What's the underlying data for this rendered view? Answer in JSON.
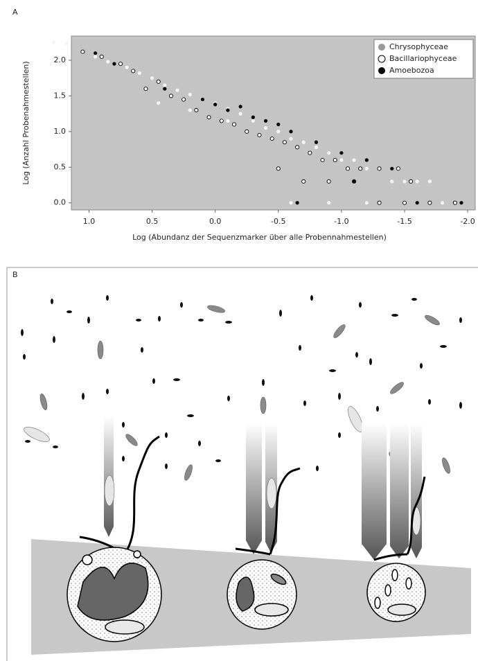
{
  "panel_labels": [
    "A",
    "B"
  ],
  "chart_data": {
    "type": "scatter",
    "xlabel": "Log (Abundanz der Sequenzmarker über alle Probennahmestellen)",
    "ylabel": "Log (Anzahl Probenahmestellen)",
    "xlim": [
      1.14,
      -2.06
    ],
    "ylim": [
      -0.1,
      2.34
    ],
    "xticks": [
      {
        "value": 1,
        "label": "1.0"
      },
      0.5,
      {
        "value": 0,
        "label": "0.0"
      },
      -0.5,
      {
        "value": -1,
        "label": "-1.0"
      },
      -1.5,
      {
        "value": -2,
        "label": "-2.0"
      }
    ],
    "yticks": [
      {
        "value": 0,
        "label": "0.0"
      },
      0.5,
      {
        "value": 1,
        "label": "1.0"
      },
      1.5,
      {
        "value": 2,
        "label": "2.0"
      }
    ],
    "legend": "upper right",
    "grid": false,
    "series": [
      {
        "name": "Chrysophyceae",
        "color": "#f4f4f4",
        "legend_color": "#999999",
        "x": [
          1.28,
          1.18,
          1.05,
          0.95,
          0.85,
          0.7,
          0.6,
          0.5,
          0.4,
          0.3,
          0.2,
          0.1,
          0.0,
          -0.1,
          -0.2,
          -0.3,
          -0.4,
          -0.5,
          -0.6,
          -0.7,
          -0.8,
          -0.9,
          -1.0,
          -1.1,
          -1.2,
          -1.3,
          -1.4,
          -1.5,
          -1.6,
          -1.7,
          -0.6,
          -0.9,
          -1.2,
          -1.5,
          -1.8,
          0.45,
          0.2,
          -0.1
        ],
        "values": [
          2.25,
          2.23,
          2.12,
          2.05,
          1.98,
          1.9,
          1.82,
          1.75,
          1.65,
          1.58,
          1.52,
          1.45,
          1.4,
          1.32,
          1.25,
          1.15,
          1.05,
          1.0,
          0.9,
          0.85,
          0.78,
          0.7,
          0.6,
          0.6,
          0.48,
          0.48,
          0.3,
          0.3,
          0.3,
          0.3,
          0,
          0,
          0,
          0,
          0,
          1.4,
          1.3,
          1.15
        ]
      },
      {
        "name": "Bacillariophyceae",
        "color": "#ffffff",
        "x": [
          1.05,
          0.9,
          0.75,
          0.65,
          0.55,
          0.45,
          0.35,
          0.25,
          0.15,
          0.05,
          -0.05,
          -0.15,
          -0.25,
          -0.35,
          -0.45,
          -0.55,
          -0.65,
          -0.75,
          -0.85,
          -0.95,
          -1.05,
          -1.15,
          -1.3,
          -1.45,
          -1.55,
          -0.5,
          -0.7,
          -0.9,
          -1.1,
          -1.3,
          -1.5,
          -1.7,
          -1.9
        ],
        "values": [
          2.12,
          2.05,
          1.95,
          1.85,
          1.6,
          1.7,
          1.5,
          1.45,
          1.3,
          1.2,
          1.15,
          1.1,
          1.0,
          0.95,
          0.9,
          0.85,
          0.78,
          0.7,
          0.6,
          0.6,
          0.48,
          0.48,
          0.48,
          0.48,
          0.3,
          0.48,
          0.3,
          0.3,
          0.3,
          0,
          0,
          0,
          0
        ]
      },
      {
        "name": "Amoebozoa",
        "color": "#000000",
        "x": [
          0.95,
          0.8,
          0.4,
          0.1,
          0.0,
          -0.1,
          -0.2,
          -0.3,
          -0.4,
          -0.5,
          -0.6,
          -0.8,
          -1.0,
          -1.2,
          -1.4,
          -0.65,
          -1.1,
          -1.6,
          -1.95
        ],
        "values": [
          2.1,
          1.95,
          1.6,
          1.45,
          1.38,
          1.3,
          1.35,
          1.2,
          1.15,
          1.1,
          1.0,
          0.85,
          0.7,
          0.6,
          0.48,
          0,
          0.3,
          0,
          0
        ]
      }
    ]
  }
}
